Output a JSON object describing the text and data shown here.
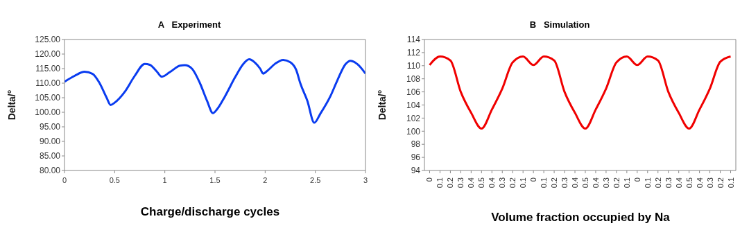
{
  "chart_data": [
    {
      "type": "line",
      "title": "A Experiment",
      "xlabel": "Charge/discharge cycles",
      "ylabel": "Delta/°",
      "xlim": [
        0,
        3
      ],
      "xticks": [
        0,
        0.5,
        1,
        1.5,
        2,
        2.5,
        3
      ],
      "ylim": [
        80,
        125
      ],
      "yticks": [
        {
          "value": 80,
          "label": "80.00"
        },
        {
          "value": 85,
          "label": "85.00"
        },
        {
          "value": 90,
          "label": "90.00"
        },
        {
          "value": 95,
          "label": "95.00"
        },
        {
          "value": 100,
          "label": "100.00"
        },
        {
          "value": 105,
          "label": "105.00"
        },
        {
          "value": 110,
          "label": "110.00"
        },
        {
          "value": 115,
          "label": "115.00"
        },
        {
          "value": 120,
          "label": "120.00"
        },
        {
          "value": 125,
          "label": "125.00"
        }
      ],
      "x": [
        0,
        0.1,
        0.2,
        0.28,
        0.35,
        0.42,
        0.46,
        0.5,
        0.6,
        0.7,
        0.8,
        0.85,
        0.92,
        0.97,
        1.05,
        1.15,
        1.2,
        1.27,
        1.35,
        1.42,
        1.48,
        1.52,
        1.6,
        1.7,
        1.78,
        1.84,
        1.9,
        1.95,
        1.98,
        2.03,
        2.1,
        2.18,
        2.25,
        2.31,
        2.35,
        2.42,
        2.49,
        2.55,
        2.65,
        2.72,
        2.8,
        2.85,
        2.92,
        3
      ],
      "series": [
        {
          "color": "#0a3cf0",
          "values": [
            110.5,
            112.5,
            113.9,
            113.2,
            110,
            105,
            102.5,
            103.3,
            107,
            112.5,
            116.6,
            116.3,
            114,
            112.2,
            113.8,
            116,
            116.2,
            115,
            110,
            104,
            99.7,
            101,
            105.5,
            112,
            116.5,
            118.2,
            117,
            115,
            113.3,
            114.5,
            116.7,
            118,
            117.2,
            114.5,
            110,
            104,
            96.4,
            99.5,
            105.5,
            111,
            116.5,
            117.7,
            116.5,
            113.3
          ]
        }
      ]
    },
    {
      "type": "line",
      "title": "B Simulation",
      "xlabel": "Volume fraction occupied by Na",
      "ylabel": "Delta/°",
      "ylim": [
        94,
        114
      ],
      "yticks": [
        94,
        96,
        98,
        100,
        102,
        104,
        106,
        108,
        110,
        112,
        114
      ],
      "categories": [
        "0",
        "0.1",
        "0.2",
        "0.3",
        "0.4",
        "0.5",
        "0.4",
        "0.3",
        "0.2",
        "0.1",
        "0",
        "0.1",
        "0.2",
        "0.3",
        "0.4",
        "0.5",
        "0.4",
        "0.3",
        "0.2",
        "0.1",
        "0",
        "0.1",
        "0.2",
        "0.3",
        "0.4",
        "0.5",
        "0.4",
        "0.3",
        "0.2",
        "0.1"
      ],
      "series": [
        {
          "color": "#f00000",
          "values": [
            110.1,
            111.4,
            110.8,
            106,
            102.8,
            100.4,
            103.3,
            106.5,
            110.5,
            111.4,
            110.1,
            111.4,
            110.8,
            106,
            102.8,
            100.4,
            103.3,
            106.5,
            110.5,
            111.4,
            110.1,
            111.4,
            110.8,
            106,
            102.8,
            100.4,
            103.3,
            106.5,
            110.6,
            111.4
          ]
        }
      ]
    }
  ]
}
